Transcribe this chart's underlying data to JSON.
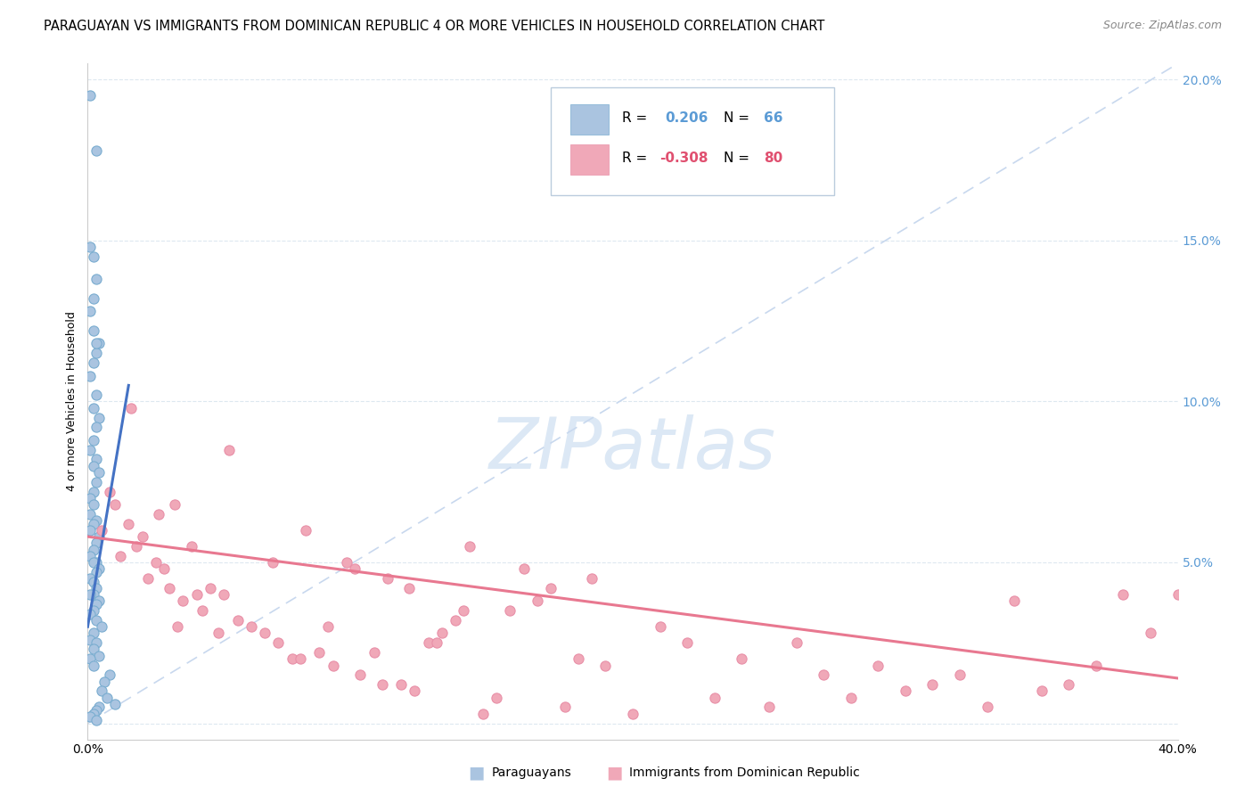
{
  "title": "PARAGUAYAN VS IMMIGRANTS FROM DOMINICAN REPUBLIC 4 OR MORE VEHICLES IN HOUSEHOLD CORRELATION CHART",
  "source": "Source: ZipAtlas.com",
  "ylabel": "4 or more Vehicles in Household",
  "xlim": [
    0.0,
    0.4
  ],
  "ylim": [
    -0.005,
    0.205
  ],
  "yticks": [
    0.0,
    0.05,
    0.1,
    0.15,
    0.2
  ],
  "ytick_labels": [
    "",
    "5.0%",
    "10.0%",
    "15.0%",
    "20.0%"
  ],
  "xticks": [
    0.0,
    0.05,
    0.1,
    0.15,
    0.2,
    0.25,
    0.3,
    0.35,
    0.4
  ],
  "xtick_labels_show": [
    "0.0%",
    "40.0%"
  ],
  "color_blue": "#aac4e0",
  "color_pink": "#f0a8b8",
  "color_blue_edge": "#7aadd0",
  "color_pink_edge": "#e890a8",
  "color_blue_text": "#5b9bd5",
  "color_pink_text": "#e05070",
  "color_trendline_blue": "#4472c4",
  "color_trendline_pink": "#e87890",
  "color_diagonal": "#c8d8ee",
  "watermark_text": "ZIPatlas",
  "watermark_color": "#dce8f5",
  "title_fontsize": 10.5,
  "source_fontsize": 9,
  "blue_scatter_x": [
    0.001,
    0.003,
    0.001,
    0.002,
    0.003,
    0.002,
    0.001,
    0.002,
    0.004,
    0.003,
    0.002,
    0.001,
    0.003,
    0.002,
    0.004,
    0.003,
    0.002,
    0.001,
    0.003,
    0.002,
    0.004,
    0.003,
    0.002,
    0.001,
    0.003,
    0.002,
    0.001,
    0.003,
    0.002,
    0.001,
    0.004,
    0.003,
    0.002,
    0.001,
    0.003,
    0.002,
    0.004,
    0.003,
    0.001,
    0.002,
    0.003,
    0.002,
    0.001,
    0.004,
    0.003,
    0.002,
    0.001,
    0.003,
    0.005,
    0.002,
    0.001,
    0.003,
    0.002,
    0.004,
    0.001,
    0.002,
    0.008,
    0.006,
    0.005,
    0.007,
    0.01,
    0.004,
    0.003,
    0.002,
    0.001,
    0.003
  ],
  "blue_scatter_y": [
    0.195,
    0.178,
    0.148,
    0.145,
    0.138,
    0.132,
    0.128,
    0.122,
    0.118,
    0.115,
    0.112,
    0.108,
    0.102,
    0.098,
    0.095,
    0.092,
    0.088,
    0.085,
    0.082,
    0.08,
    0.078,
    0.075,
    0.072,
    0.07,
    0.118,
    0.068,
    0.065,
    0.063,
    0.062,
    0.06,
    0.058,
    0.056,
    0.054,
    0.052,
    0.05,
    0.05,
    0.048,
    0.047,
    0.045,
    0.044,
    0.042,
    0.04,
    0.04,
    0.038,
    0.037,
    0.035,
    0.034,
    0.032,
    0.03,
    0.028,
    0.026,
    0.025,
    0.023,
    0.021,
    0.02,
    0.018,
    0.015,
    0.013,
    0.01,
    0.008,
    0.006,
    0.005,
    0.004,
    0.003,
    0.002,
    0.001
  ],
  "pink_scatter_x": [
    0.005,
    0.008,
    0.01,
    0.012,
    0.015,
    0.018,
    0.02,
    0.022,
    0.025,
    0.028,
    0.03,
    0.032,
    0.035,
    0.038,
    0.04,
    0.042,
    0.045,
    0.048,
    0.05,
    0.055,
    0.06,
    0.065,
    0.07,
    0.075,
    0.08,
    0.085,
    0.09,
    0.095,
    0.1,
    0.105,
    0.11,
    0.115,
    0.12,
    0.125,
    0.13,
    0.135,
    0.14,
    0.15,
    0.155,
    0.16,
    0.165,
    0.17,
    0.175,
    0.18,
    0.185,
    0.19,
    0.2,
    0.21,
    0.22,
    0.23,
    0.24,
    0.25,
    0.26,
    0.27,
    0.28,
    0.29,
    0.3,
    0.31,
    0.32,
    0.33,
    0.34,
    0.35,
    0.36,
    0.37,
    0.38,
    0.39,
    0.4,
    0.145,
    0.033,
    0.016,
    0.026,
    0.052,
    0.068,
    0.078,
    0.088,
    0.098,
    0.108,
    0.118,
    0.128,
    0.138
  ],
  "pink_scatter_y": [
    0.06,
    0.072,
    0.068,
    0.052,
    0.062,
    0.055,
    0.058,
    0.045,
    0.05,
    0.048,
    0.042,
    0.068,
    0.038,
    0.055,
    0.04,
    0.035,
    0.042,
    0.028,
    0.04,
    0.032,
    0.03,
    0.028,
    0.025,
    0.02,
    0.06,
    0.022,
    0.018,
    0.05,
    0.015,
    0.022,
    0.045,
    0.012,
    0.01,
    0.025,
    0.028,
    0.032,
    0.055,
    0.008,
    0.035,
    0.048,
    0.038,
    0.042,
    0.005,
    0.02,
    0.045,
    0.018,
    0.003,
    0.03,
    0.025,
    0.008,
    0.02,
    0.005,
    0.025,
    0.015,
    0.008,
    0.018,
    0.01,
    0.012,
    0.015,
    0.005,
    0.038,
    0.01,
    0.012,
    0.018,
    0.04,
    0.028,
    0.04,
    0.003,
    0.03,
    0.098,
    0.065,
    0.085,
    0.05,
    0.02,
    0.03,
    0.048,
    0.012,
    0.042,
    0.025,
    0.035
  ],
  "blue_trend_x": [
    0.0,
    0.015
  ],
  "blue_trend_y": [
    0.03,
    0.105
  ],
  "pink_trend_x": [
    0.0,
    0.4
  ],
  "pink_trend_y": [
    0.058,
    0.014
  ]
}
